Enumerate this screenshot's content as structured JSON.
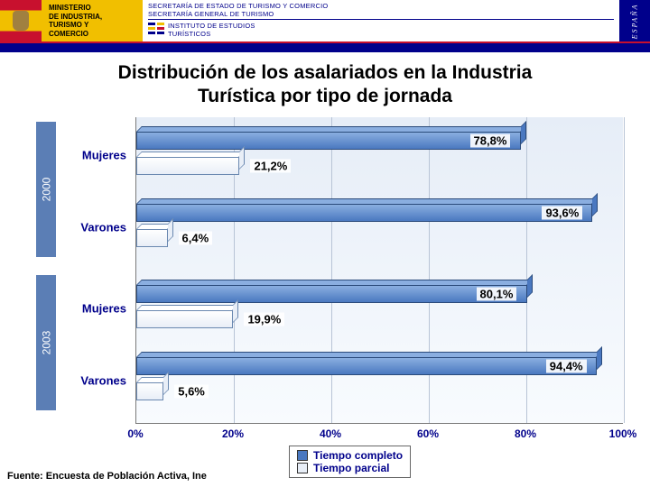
{
  "header": {
    "ministry_lines": [
      "MINISTERIO",
      "DE INDUSTRIA,",
      "TURISMO Y",
      "COMERCIO"
    ],
    "secretary_line1": "SECRETARÍA DE ESTADO DE TURISMO Y COMERCIO",
    "secretary_line2": "SECRETARÍA GENERAL DE TURISMO",
    "institute_line1": "INSTITUTO DE ESTUDIOS",
    "institute_line2": "TURÍSTICOS",
    "espana": "ESPAÑA"
  },
  "title_line1": "Distribución de los asalariados en la Industria",
  "title_line2": "Turística por tipo de jornada",
  "chart": {
    "type": "bar",
    "orientation": "horizontal",
    "background_gradient": [
      "#e6edf7",
      "#f8fbfe"
    ],
    "grid_color": "#b8c4d6",
    "axis_color": "#7a7a7a",
    "label_color": "#00008b",
    "label_fontsize": 13,
    "xlim": [
      0,
      100
    ],
    "xtick_step": 20,
    "xtick_labels": [
      "0%",
      "20%",
      "40%",
      "60%",
      "80%",
      "100%"
    ],
    "bar_3d_depth": 6,
    "series": [
      {
        "name": "Tiempo completo",
        "fill": "#4a78c0",
        "fill_light": "#8aaee0",
        "border": "#2a4a7a"
      },
      {
        "name": "Tiempo parcial",
        "fill": "#e8eef7",
        "fill_light": "#ffffff",
        "border": "#6a88b0"
      }
    ],
    "year_groups": [
      {
        "year": "2000",
        "rows": [
          {
            "category": "Mujeres",
            "completo": 78.8,
            "parcial": 21.2,
            "completo_label": "78,8%",
            "parcial_label": "21,2%"
          },
          {
            "category": "Varones",
            "completo": 93.6,
            "parcial": 6.4,
            "completo_label": "93,6%",
            "parcial_label": "6,4%"
          }
        ]
      },
      {
        "year": "2003",
        "rows": [
          {
            "category": "Mujeres",
            "completo": 80.1,
            "parcial": 19.9,
            "completo_label": "80,1%",
            "parcial_label": "19,9%"
          },
          {
            "category": "Varones",
            "completo": 94.4,
            "parcial": 5.6,
            "completo_label": "94,4%",
            "parcial_label": "5,6%"
          }
        ]
      }
    ],
    "legend_labels": [
      "Tiempo completo",
      "Tiempo parcial"
    ]
  },
  "source": "Fuente: Encuesta de Población Activa, Ine"
}
